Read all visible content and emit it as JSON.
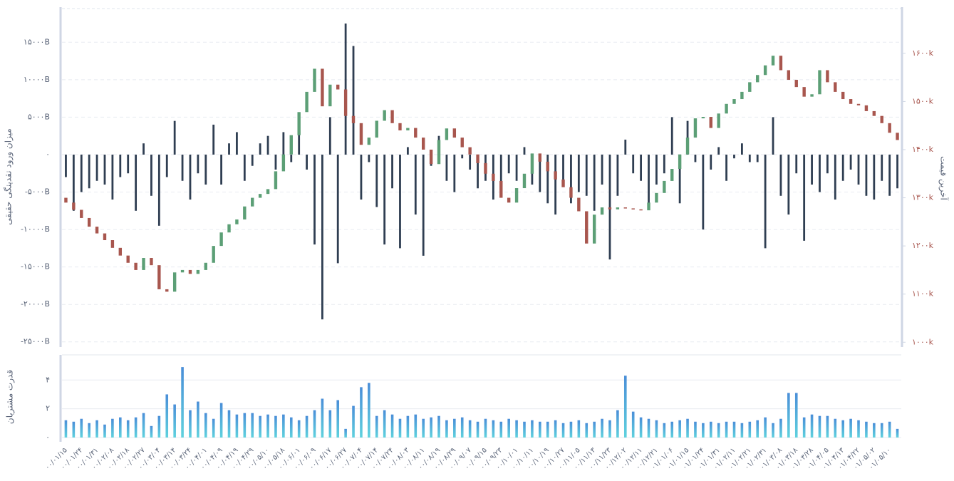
{
  "chart_data": [
    {
      "type": "candlestick",
      "ylabel": "میزان ورود نقدینگی حقیقی",
      "y2label": "آخرین قیمت",
      "ylim": [
        -25500,
        19500
      ],
      "yticks": [
        {
          "value": 15000,
          "label": "۱۵۰۰۰B"
        },
        {
          "value": 10000,
          "label": "۱۰۰۰۰B"
        },
        {
          "value": 5000,
          "label": "۵۰۰۰B"
        },
        {
          "value": 0,
          "label": "۰"
        },
        {
          "value": -5000,
          "label": "-۵۰۰۰B"
        },
        {
          "value": -10000,
          "label": "-۱۰۰۰۰B"
        },
        {
          "value": -15000,
          "label": "-۱۵۰۰۰B"
        },
        {
          "value": -20000,
          "label": "-۲۰۰۰۰B"
        },
        {
          "value": -25000,
          "label": "-۲۵۰۰۰B"
        }
      ],
      "y2lim": [
        993,
        1693
      ],
      "y2ticks": [
        {
          "value": 1600,
          "label": "۱۶۰۰k"
        },
        {
          "value": 1500,
          "label": "۱۵۰۰k"
        },
        {
          "value": 1400,
          "label": "۱۴۰۰k"
        },
        {
          "value": 1300,
          "label": "۱۳۰۰k"
        },
        {
          "value": 1200,
          "label": "۱۲۰۰k"
        },
        {
          "value": 1100,
          "label": "۱۱۰۰k"
        },
        {
          "value": 1000,
          "label": "۱۰۰۰k"
        }
      ],
      "grid": true,
      "categories": [
        "۰۰/۰۱/۱۵",
        null,
        "۰۰/۰۱/۲۴",
        null,
        "۰۰/۰۱/۳۱",
        null,
        "۰۰/۰۲/۰۸",
        null,
        "۰۰/۰۲/۱۸",
        null,
        "۰۰/۰۲/۲۷",
        null,
        "۰۰/۰۳/۰۴",
        null,
        "۰۰/۰۳/۱۴",
        null,
        "۰۰/۰۳/۲۴",
        null,
        "۰۰/۰۴/۰۱",
        null,
        "۰۰/۰۴/۰۹",
        null,
        "۰۰/۰۴/۱۹",
        null,
        "۰۰/۰۴/۲۹",
        null,
        "۰۰/۰۵/۱۰",
        null,
        "۰۰/۰۵/۱۸",
        null,
        "۰۰/۰۶/۰۱",
        null,
        "۰۰/۰۶/۰۹",
        null,
        "۰۰/۰۶/۱۷",
        null,
        "۰۰/۰۶/۲۷",
        null,
        "۰۰/۰۷/۰۴",
        null,
        "۰۰/۰۷/۱۴",
        null,
        "۰۰/۰۷/۲۴",
        null,
        "۰۰/۰۸/۰۳",
        null,
        "۰۰/۰۸/۱۱",
        null,
        "۰۰/۰۸/۱۹",
        null,
        "۰۰/۰۸/۲۹",
        null,
        "۰۰/۰۹/۰۷",
        null,
        "۰۰/۰۹/۱۵",
        null,
        "۰۰/۰۹/۲۳",
        null,
        "۰۰/۱۰/۰۱",
        null,
        "۰۰/۱۰/۱۱",
        null,
        "۰۰/۱۰/۱۹",
        null,
        "۰۰/۱۰/۲۷",
        null,
        "۰۰/۱۱/۰۵",
        null,
        "۰۰/۱۱/۱۳",
        null,
        "۰۰/۱۱/۲۳",
        null,
        "۰۰/۱۲/۰۲",
        null,
        "۰۰/۱۲/۱۱",
        null,
        "۰۰/۱۲/۲۱",
        null,
        "۰۱/۰۱/۰۶",
        null,
        "۰۱/۰۱/۱۵",
        null,
        "۰۱/۰۱/۲۴",
        null,
        "۰۱/۰۱/۳۱",
        null,
        "۰۱/۰۲/۱۱",
        null,
        "۰۱/۰۲/۲۱",
        null,
        "۰۱/۰۲/۳۱",
        null,
        "۰۱/۰۳/۰۸",
        null,
        "۰۱/۰۳/۱۸",
        null,
        "۰۱/۰۳/۲۸",
        null,
        "۰۱/۰۴/۰۵",
        null,
        "۰۱/۰۴/۱۳",
        null,
        "۰۱/۰۴/۲۲",
        null,
        "۰۱/۰۵/۰۲",
        null,
        "۰۱/۰۵/۱۰",
        null
      ],
      "inflow": {
        "color": "#2f3e52",
        "values": [
          -3000,
          -7500,
          -5000,
          -4500,
          -3500,
          -4000,
          -6000,
          -3000,
          -2500,
          -7500,
          1500,
          -5500,
          -9500,
          -3000,
          4500,
          -3500,
          -6000,
          -2500,
          -4000,
          4000,
          -4000,
          1500,
          3000,
          -3500,
          -1500,
          1500,
          2500,
          -2000,
          3000,
          -1000,
          5500,
          -2000,
          -12000,
          -22000,
          5000,
          -14500,
          17500,
          14500,
          -6000,
          -1000,
          -7000,
          -12000,
          -4500,
          -12500,
          1000,
          -8000,
          -13500,
          -1500,
          2500,
          -3500,
          -5000,
          -500,
          -2000,
          -4500,
          -3500,
          -6000,
          -4500,
          -2500,
          -3500,
          1000,
          -4000,
          -5000,
          -6500,
          -8000,
          -3500,
          -6500,
          -5000,
          -5500,
          -7500,
          -4000,
          -14000,
          -5500,
          2000,
          -2500,
          -3500,
          -7000,
          -4000,
          -2500,
          5000,
          -6500,
          4500,
          -1000,
          -10000,
          -2000,
          1000,
          -3500,
          -500,
          1500,
          -1000,
          -1000,
          -12500,
          5000,
          -5500,
          -8000,
          -2500,
          -11500,
          -4000,
          -5000,
          -2500,
          -6000,
          -3500,
          -2000,
          -4000,
          -5500,
          -6000,
          -3500,
          -5500,
          -4500
        ]
      },
      "price": {
        "axis": "y2",
        "up_color": "#5c9f76",
        "down_color": "#a8564e",
        "open": [
          1300,
          1290,
          1275,
          1258,
          1240,
          1226,
          1212,
          1196,
          1180,
          1165,
          1150,
          1175,
          1160,
          1110,
          1105,
          1145,
          1150,
          1142,
          1150,
          1165,
          1200,
          1228,
          1245,
          1255,
          1282,
          1300,
          1308,
          1318,
          1355,
          1390,
          1430,
          1478,
          1520,
          1568,
          1490,
          1535,
          1525,
          1470,
          1455,
          1410,
          1425,
          1460,
          1482,
          1455,
          1440,
          1445,
          1425,
          1400,
          1370,
          1420,
          1444,
          1425,
          1405,
          1390,
          1372,
          1350,
          1335,
          1300,
          1290,
          1320,
          1350,
          1392,
          1375,
          1355,
          1338,
          1322,
          1300,
          1272,
          1205,
          1265,
          1280,
          1276,
          1280,
          1278,
          1276,
          1274,
          1290,
          1310,
          1335,
          1360,
          1390,
          1425,
          1465,
          1468,
          1445,
          1475,
          1495,
          1505,
          1520,
          1540,
          1555,
          1575,
          1595,
          1565,
          1545,
          1530,
          1510,
          1515,
          1565,
          1540,
          1520,
          1505,
          1495,
          1492,
          1480,
          1470,
          1455,
          1435
        ],
        "close": [
          1290,
          1275,
          1258,
          1240,
          1226,
          1212,
          1196,
          1180,
          1165,
          1150,
          1175,
          1160,
          1110,
          1105,
          1145,
          1150,
          1142,
          1150,
          1165,
          1200,
          1228,
          1245,
          1255,
          1282,
          1300,
          1308,
          1318,
          1355,
          1390,
          1430,
          1478,
          1520,
          1568,
          1490,
          1535,
          1525,
          1470,
          1455,
          1410,
          1425,
          1460,
          1482,
          1455,
          1440,
          1445,
          1425,
          1400,
          1370,
          1420,
          1444,
          1425,
          1405,
          1390,
          1372,
          1350,
          1335,
          1300,
          1290,
          1320,
          1350,
          1392,
          1375,
          1355,
          1338,
          1322,
          1300,
          1272,
          1205,
          1265,
          1280,
          1276,
          1280,
          1278,
          1276,
          1274,
          1290,
          1310,
          1335,
          1360,
          1390,
          1425,
          1465,
          1468,
          1445,
          1475,
          1495,
          1505,
          1520,
          1540,
          1555,
          1575,
          1595,
          1565,
          1545,
          1530,
          1510,
          1515,
          1565,
          1540,
          1520,
          1505,
          1495,
          1492,
          1480,
          1470,
          1455,
          1435,
          1420
        ]
      }
    },
    {
      "type": "bar",
      "ylabel": "قدرت مشتریان",
      "ylim": [
        -0.3,
        5.65
      ],
      "yticks": [
        {
          "value": 0,
          "label": "۰"
        },
        {
          "value": 2,
          "label": "۲"
        },
        {
          "value": 4,
          "label": "۴"
        }
      ],
      "grid": true,
      "colors": [
        "#4a8ed8",
        "#5fd2de"
      ],
      "values": [
        1.2,
        1.1,
        1.3,
        1.0,
        1.2,
        0.9,
        1.3,
        1.4,
        1.2,
        1.4,
        1.7,
        0.8,
        1.5,
        3.0,
        2.3,
        4.9,
        1.9,
        2.5,
        1.7,
        1.3,
        2.4,
        1.9,
        1.6,
        1.7,
        1.7,
        1.5,
        1.6,
        1.5,
        1.6,
        1.4,
        1.2,
        1.5,
        1.9,
        2.7,
        1.9,
        2.6,
        0.6,
        2.2,
        3.5,
        3.8,
        1.5,
        1.9,
        1.6,
        1.3,
        1.5,
        1.6,
        1.3,
        1.4,
        1.5,
        1.2,
        1.3,
        1.4,
        1.2,
        1.1,
        1.3,
        1.2,
        1.1,
        1.3,
        1.2,
        1.1,
        1.2,
        1.1,
        1.1,
        1.2,
        1.0,
        1.1,
        1.2,
        1.0,
        1.1,
        1.3,
        1.2,
        1.9,
        4.3,
        1.8,
        1.4,
        1.3,
        1.2,
        1.0,
        1.1,
        1.2,
        1.3,
        1.1,
        1.0,
        1.1,
        1.0,
        1.1,
        1.1,
        1.0,
        1.1,
        1.2,
        1.4,
        1.0,
        1.3,
        3.1,
        3.1,
        1.4,
        1.6,
        1.5,
        1.5,
        1.3,
        1.2,
        1.3,
        1.2,
        1.1,
        1.0,
        1.0,
        1.1,
        0.6
      ]
    }
  ]
}
